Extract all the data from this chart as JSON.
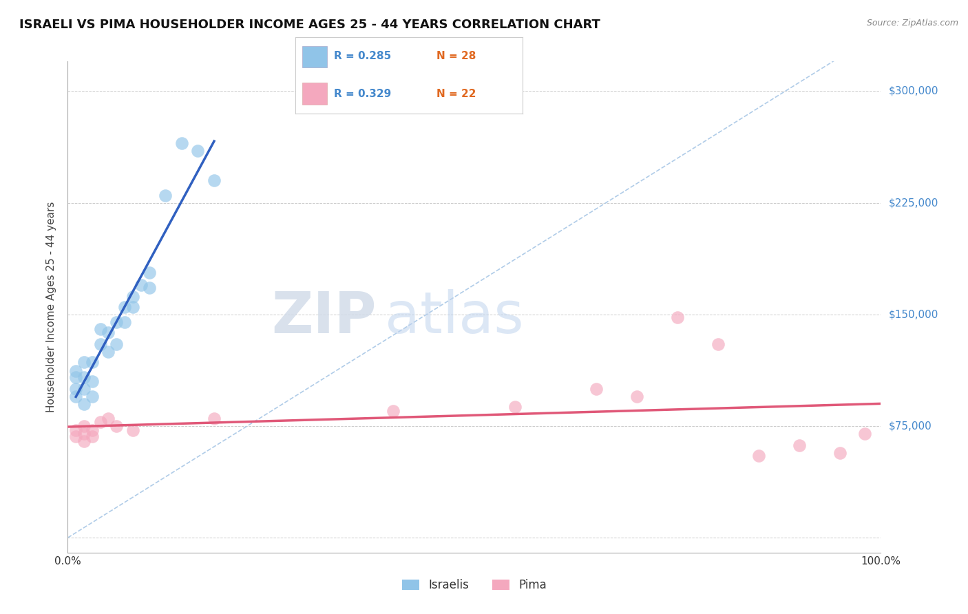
{
  "title": "ISRAELI VS PIMA HOUSEHOLDER INCOME AGES 25 - 44 YEARS CORRELATION CHART",
  "source": "Source: ZipAtlas.com",
  "ylabel": "Householder Income Ages 25 - 44 years",
  "xlim": [
    0,
    100
  ],
  "ylim": [
    -10000,
    320000
  ],
  "background_color": "#ffffff",
  "legend_r1": "R = 0.285",
  "legend_n1": "N = 28",
  "legend_r2": "R = 0.329",
  "legend_n2": "N = 22",
  "blue_scatter_color": "#90c4e8",
  "pink_scatter_color": "#f4a8be",
  "blue_line_color": "#3060c0",
  "pink_line_color": "#e05878",
  "blue_dash_color": "#b0cce8",
  "israelis_x": [
    1,
    1,
    1,
    1,
    2,
    2,
    2,
    2,
    3,
    3,
    3,
    4,
    4,
    5,
    5,
    6,
    6,
    7,
    7,
    8,
    8,
    9,
    10,
    10,
    12,
    14,
    16,
    18
  ],
  "israelis_y": [
    95000,
    100000,
    108000,
    112000,
    90000,
    100000,
    108000,
    118000,
    95000,
    105000,
    118000,
    130000,
    140000,
    125000,
    138000,
    130000,
    145000,
    145000,
    155000,
    155000,
    162000,
    170000,
    168000,
    178000,
    230000,
    265000,
    260000,
    240000
  ],
  "pima_x": [
    1,
    1,
    2,
    2,
    2,
    3,
    3,
    4,
    5,
    6,
    8,
    18,
    40,
    55,
    65,
    70,
    75,
    80,
    85,
    90,
    95,
    98
  ],
  "pima_y": [
    68000,
    72000,
    65000,
    70000,
    75000,
    68000,
    72000,
    78000,
    80000,
    75000,
    72000,
    80000,
    85000,
    88000,
    100000,
    95000,
    148000,
    130000,
    55000,
    62000,
    57000,
    70000
  ],
  "title_fontsize": 13,
  "axis_label_fontsize": 11,
  "tick_fontsize": 11,
  "legend_fontsize": 12,
  "source_fontsize": 9
}
